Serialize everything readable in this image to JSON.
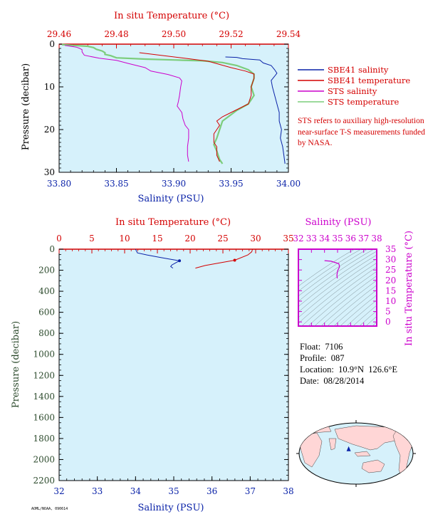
{
  "chart_data": [
    {
      "type": "line",
      "title": "",
      "x_bottom": {
        "label": "Salinity (PSU)",
        "range": [
          33.8,
          34.0
        ],
        "ticks": [
          "33.80",
          "33.85",
          "33.90",
          "33.95",
          "34.00"
        ]
      },
      "x_top": {
        "label": "In situ Temperature (°C)",
        "range": [
          29.46,
          29.54
        ],
        "ticks": [
          "29.46",
          "29.48",
          "29.50",
          "29.52",
          "29.54"
        ]
      },
      "y": {
        "label": "Pressure (decibar)",
        "range": [
          0,
          30
        ],
        "inverted": true,
        "ticks": [
          "0",
          "10",
          "20",
          "30"
        ]
      },
      "legend": {
        "placement": "right",
        "entries": [
          {
            "name": "SBE41 salinity",
            "color": "#0a22a8"
          },
          {
            "name": "SBE41 temperature",
            "color": "#d40000"
          },
          {
            "name": "STS salinity",
            "color": "#cc00cc"
          },
          {
            "name": "STS temperature",
            "color": "#7ccd7c"
          }
        ]
      },
      "note": "STS refers to auxiliary high-resolution near-surface T-S measurements funded by NASA.",
      "series": [
        {
          "name": "SBE41 salinity",
          "axis": "salinity",
          "color": "#0a22a8",
          "points": [
            [
              33.945,
              3.0
            ],
            [
              33.955,
              3.1
            ],
            [
              33.96,
              3.4
            ],
            [
              33.975,
              3.7
            ],
            [
              33.978,
              4.4
            ],
            [
              33.985,
              5.0
            ],
            [
              33.988,
              6.0
            ],
            [
              33.99,
              6.8
            ],
            [
              33.988,
              7.5
            ],
            [
              33.985,
              8.5
            ],
            [
              33.986,
              10.0
            ],
            [
              33.988,
              12.0
            ],
            [
              33.99,
              14.0
            ],
            [
              33.992,
              16.0
            ],
            [
              33.992,
              18.0
            ],
            [
              33.994,
              20.0
            ],
            [
              33.993,
              22.0
            ],
            [
              33.995,
              24.0
            ],
            [
              33.996,
              26.0
            ],
            [
              33.997,
              28.0
            ]
          ]
        },
        {
          "name": "SBE41 temperature",
          "axis": "temperature",
          "color": "#d40000",
          "points": [
            [
              29.488,
              2.0
            ],
            [
              29.505,
              3.4
            ],
            [
              29.512,
              4.0
            ],
            [
              29.52,
              5.5
            ],
            [
              29.525,
              6.3
            ],
            [
              29.528,
              7.0
            ],
            [
              29.528,
              8.0
            ],
            [
              29.527,
              10.0
            ],
            [
              29.527,
              12.0
            ],
            [
              29.526,
              14.0
            ],
            [
              29.523,
              15.0
            ],
            [
              29.52,
              16.0
            ],
            [
              29.517,
              17.0
            ],
            [
              29.515,
              18.0
            ],
            [
              29.516,
              19.0
            ],
            [
              29.515,
              20.0
            ],
            [
              29.514,
              21.0
            ],
            [
              29.514,
              22.0
            ],
            [
              29.514,
              23.0
            ],
            [
              29.515,
              24.0
            ],
            [
              29.515,
              26.0
            ],
            [
              29.516,
              27.5
            ]
          ]
        },
        {
          "name": "STS salinity",
          "axis": "salinity",
          "color": "#cc00cc",
          "points": [
            [
              33.805,
              0.3
            ],
            [
              33.815,
              0.7
            ],
            [
              33.818,
              1.0
            ],
            [
              33.82,
              1.3
            ],
            [
              33.82,
              1.8
            ],
            [
              33.822,
              2.6
            ],
            [
              33.835,
              3.3
            ],
            [
              33.85,
              3.8
            ],
            [
              33.86,
              4.5
            ],
            [
              33.875,
              5.5
            ],
            [
              33.88,
              6.3
            ],
            [
              33.895,
              7.1
            ],
            [
              33.905,
              7.9
            ],
            [
              33.907,
              8.6
            ],
            [
              33.906,
              10.0
            ],
            [
              33.905,
              12.0
            ],
            [
              33.904,
              13.5
            ],
            [
              33.903,
              14.5
            ],
            [
              33.907,
              16.0
            ],
            [
              33.908,
              17.5
            ],
            [
              33.91,
              19.0
            ],
            [
              33.913,
              20.0
            ],
            [
              33.913,
              22.0
            ],
            [
              33.912,
              24.0
            ],
            [
              33.912,
              26.0
            ],
            [
              33.913,
              27.5
            ]
          ]
        },
        {
          "name": "STS temperature",
          "axis": "temperature",
          "color": "#7ccd7c",
          "points": [
            [
              29.461,
              0.1
            ],
            [
              29.465,
              0.3
            ],
            [
              29.47,
              0.5
            ],
            [
              29.472,
              0.8
            ],
            [
              29.473,
              1.2
            ],
            [
              29.475,
              1.6
            ],
            [
              29.476,
              2.0
            ],
            [
              29.476,
              2.4
            ],
            [
              29.478,
              2.7
            ],
            [
              29.48,
              3.2
            ],
            [
              29.49,
              3.5
            ],
            [
              29.5,
              3.7
            ],
            [
              29.51,
              3.9
            ],
            [
              29.517,
              4.3
            ],
            [
              29.522,
              5.0
            ],
            [
              29.526,
              6.0
            ],
            [
              29.528,
              7.0
            ],
            [
              29.528,
              8.0
            ],
            [
              29.527,
              10.0
            ],
            [
              29.528,
              12.0
            ],
            [
              29.526,
              14.0
            ],
            [
              29.522,
              15.5
            ],
            [
              29.519,
              17.0
            ],
            [
              29.517,
              18.0
            ],
            [
              29.516,
              20.0
            ],
            [
              29.515,
              22.0
            ],
            [
              29.514,
              23.5
            ],
            [
              29.515,
              25.0
            ],
            [
              29.516,
              27.0
            ],
            [
              29.517,
              28.0
            ]
          ]
        }
      ]
    },
    {
      "type": "line",
      "title": "",
      "x_bottom": {
        "label": "Salinity (PSU)",
        "range": [
          32,
          38
        ],
        "ticks": [
          "32",
          "33",
          "34",
          "35",
          "36",
          "37",
          "38"
        ]
      },
      "x_top": {
        "label": "In situ Temperature (°C)",
        "range": [
          0,
          35
        ],
        "ticks": [
          "0",
          "5",
          "10",
          "15",
          "20",
          "25",
          "30",
          "35"
        ]
      },
      "y": {
        "label": "Pressure (decibar)",
        "range": [
          0,
          2200
        ],
        "inverted": true,
        "ticks": [
          "0",
          "200",
          "400",
          "600",
          "800",
          "1000",
          "1200",
          "1400",
          "1600",
          "1800",
          "2000",
          "2200"
        ]
      },
      "series": [
        {
          "name": "salinity",
          "axis": "salinity",
          "color": "#0a22a8",
          "points": [
            [
              34.0,
              0
            ],
            [
              34.02,
              15
            ],
            [
              34.05,
              35
            ],
            [
              34.3,
              55
            ],
            [
              34.6,
              75
            ],
            [
              34.9,
              95
            ],
            [
              35.15,
              110
            ],
            [
              35.05,
              130
            ],
            [
              34.95,
              150
            ],
            [
              34.92,
              165
            ],
            [
              34.98,
              180
            ]
          ]
        },
        {
          "name": "temperature",
          "axis": "temperature",
          "color": "#d40000",
          "points": [
            [
              29.52,
              0
            ],
            [
              29.4,
              25
            ],
            [
              28.8,
              55
            ],
            [
              26.8,
              105
            ],
            [
              24.5,
              130
            ],
            [
              22.3,
              155
            ],
            [
              20.8,
              180
            ]
          ]
        }
      ]
    },
    {
      "type": "scatter",
      "title": "",
      "x": {
        "label": "Salinity (PSU)",
        "range": [
          32,
          38
        ],
        "ticks": [
          "32",
          "33",
          "34",
          "35",
          "36",
          "37",
          "38"
        ]
      },
      "y": {
        "label": "In situ Temperature (°C)",
        "range": [
          -2,
          35
        ],
        "ticks": [
          "0",
          "5",
          "10",
          "15",
          "20",
          "25",
          "30",
          "35"
        ]
      },
      "grid": "density contours",
      "series": [
        {
          "name": "T-S",
          "color": "#cc00cc",
          "points": [
            [
              34.0,
              29.5
            ],
            [
              34.5,
              29.2
            ],
            [
              35.1,
              28.0
            ],
            [
              35.15,
              26.5
            ],
            [
              35.0,
              24.5
            ],
            [
              34.95,
              22.5
            ],
            [
              34.98,
              21.0
            ]
          ]
        }
      ]
    }
  ],
  "info": {
    "float": "Float:  7106",
    "profile": "Profile:  087",
    "location": "Location:  10.9°N  126.6°E",
    "date": "Date:  08/28/2014"
  },
  "map": {
    "marker_lat": 10.9,
    "marker_lon": 126.6,
    "marker_color": "#0a22a8"
  },
  "footer": "AOML/NOAA, 090614",
  "colors": {
    "plot_bg": "#d6f1fb",
    "temperature": "#d40000",
    "salinity": "#0a22a8",
    "pressure": "#2d4b2d",
    "ts_axes": "#cc00cc"
  }
}
